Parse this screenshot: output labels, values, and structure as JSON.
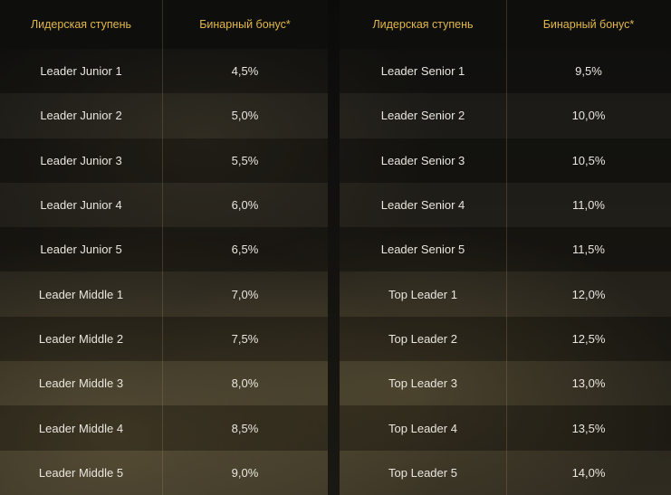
{
  "headers": {
    "level": "Лидерская ступень",
    "bonus": "Бинарный бонус*"
  },
  "left_rows": [
    {
      "level": "Leader Junior 1",
      "bonus": "4,5%"
    },
    {
      "level": "Leader Junior 2",
      "bonus": "5,0%"
    },
    {
      "level": "Leader Junior 3",
      "bonus": "5,5%"
    },
    {
      "level": "Leader Junior 4",
      "bonus": "6,0%"
    },
    {
      "level": "Leader Junior 5",
      "bonus": "6,5%"
    },
    {
      "level": "Leader Middle 1",
      "bonus": "7,0%"
    },
    {
      "level": "Leader Middle 2",
      "bonus": "7,5%"
    },
    {
      "level": "Leader Middle 3",
      "bonus": "8,0%"
    },
    {
      "level": "Leader Middle 4",
      "bonus": "8,5%"
    },
    {
      "level": "Leader Middle 5",
      "bonus": "9,0%"
    }
  ],
  "right_rows": [
    {
      "level": "Leader Senior 1",
      "bonus": "9,5%"
    },
    {
      "level": "Leader Senior 2",
      "bonus": "10,0%"
    },
    {
      "level": "Leader Senior 3",
      "bonus": "10,5%"
    },
    {
      "level": "Leader Senior 4",
      "bonus": "11,0%"
    },
    {
      "level": "Leader Senior 5",
      "bonus": "11,5%"
    },
    {
      "level": "Top Leader 1",
      "bonus": "12,0%"
    },
    {
      "level": "Top Leader 2",
      "bonus": "12,5%"
    },
    {
      "level": "Top Leader 3",
      "bonus": "13,0%"
    },
    {
      "level": "Top Leader 4",
      "bonus": "13,5%"
    },
    {
      "level": "Top Leader 5",
      "bonus": "14,0%"
    }
  ],
  "colors": {
    "header_text": "#e2b84a",
    "row_text": "#e9e6df",
    "background": "#0f0f0d"
  }
}
